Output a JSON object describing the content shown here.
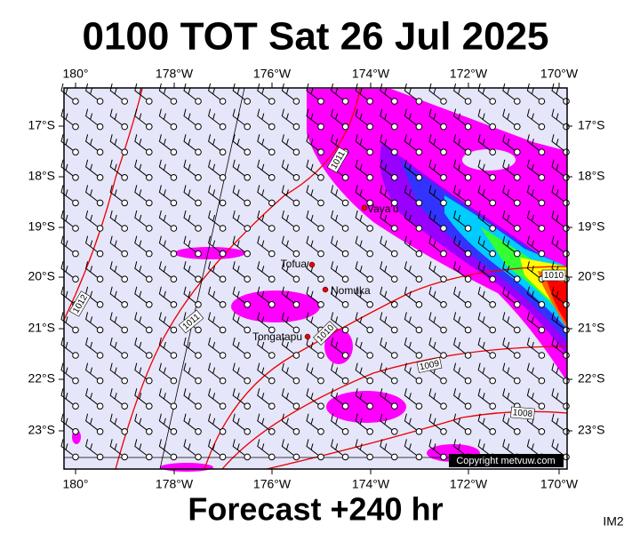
{
  "title": "0100 TOT Sat 26 Jul 2025",
  "footer": "Forecast +240 hr",
  "corner_label": "IM2",
  "copyright": "Copyright metvuw.com",
  "longitude_labels": [
    "180°",
    "178°W",
    "176°W",
    "174°W",
    "172°W",
    "170°W"
  ],
  "latitude_labels": [
    "17°S",
    "18°S",
    "19°S",
    "20°S",
    "21°S",
    "22°S",
    "23°S"
  ],
  "places": [
    {
      "label": "Vava'u"
    },
    {
      "label": "Tofua"
    },
    {
      "label": "Nomuka"
    },
    {
      "label": "Tongatapu"
    }
  ],
  "isobar_labels": [
    "1011",
    "1012",
    "1011",
    "1010",
    "1009",
    "1008",
    "1010"
  ]
}
